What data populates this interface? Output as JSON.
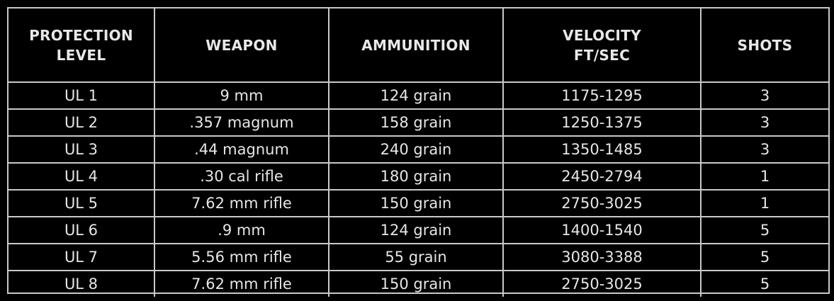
{
  "table": {
    "headers": [
      {
        "line1": "PROTECTION",
        "line2": "LEVEL"
      },
      {
        "line1": "WEAPON",
        "line2": ""
      },
      {
        "line1": "AMMUNITION",
        "line2": ""
      },
      {
        "line1": "VELOCITY",
        "line2": "FT/SEC"
      },
      {
        "line1": "SHOTS",
        "line2": ""
      }
    ],
    "rows": [
      [
        "UL 1",
        "9 mm",
        "124 grain",
        "1175-1295",
        "3"
      ],
      [
        "UL 2",
        ".357 magnum",
        "158 grain",
        "1250-1375",
        "3"
      ],
      [
        "UL 3",
        ".44 magnum",
        "240 grain",
        "1350-1485",
        "3"
      ],
      [
        "UL 4",
        ".30 cal rifle",
        "180 grain",
        "2450-2794",
        "1"
      ],
      [
        "UL 5",
        "7.62 mm rifle",
        "150 grain",
        "2750-3025",
        "1"
      ],
      [
        "UL 6",
        ".9 mm",
        "124 grain",
        "1400-1540",
        "5"
      ],
      [
        "UL 7",
        "5.56 mm rifle",
        "55 grain",
        "3080-3388",
        "5"
      ],
      [
        "UL 8",
        "7.62 mm rifle",
        "150 grain",
        "2750-3025",
        "5"
      ]
    ]
  }
}
